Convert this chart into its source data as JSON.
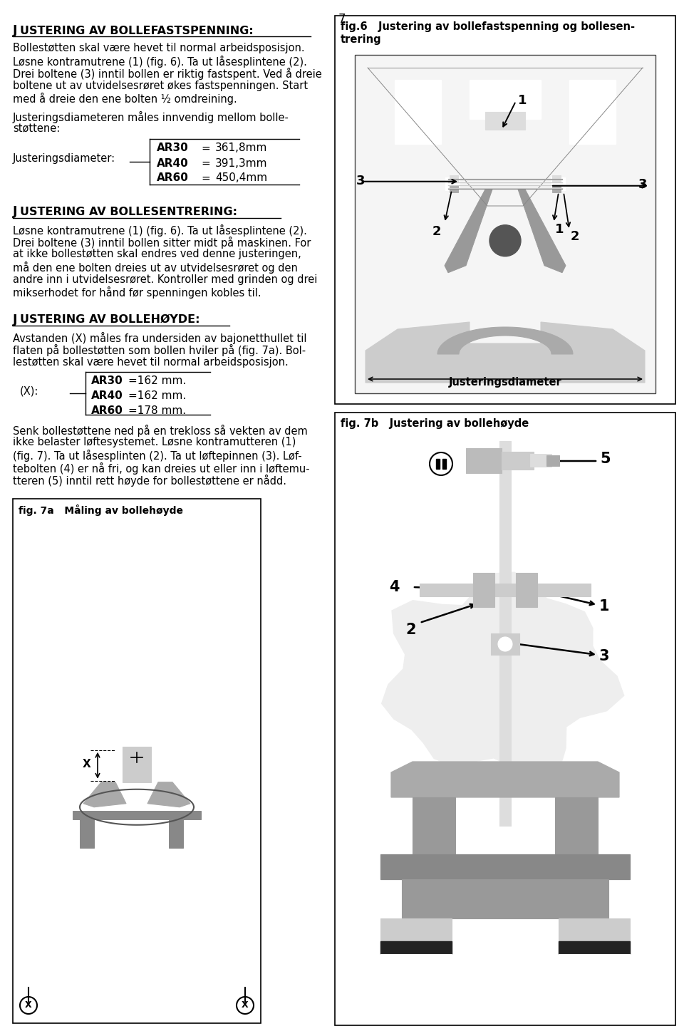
{
  "page_number": "7",
  "bg_color": "#ffffff",
  "section1_heading_J": "J",
  "section1_heading_rest": "USTERING AV BOLLEFASTSPENNING:",
  "section1_lines": [
    "Bollestøtten skal være hevet til normal arbeidsposisjon.",
    "Løsne kontramutrene (1) (fig. 6). Ta ut låsesplintene (2).",
    "Drei boltene (3) inntil bollen er riktig fastspent. Ved å dreie",
    "boltene ut av utvidelsesrøret økes fastspenningen. Start",
    "med å dreie den ene bolten ½ omdreining."
  ],
  "section1_para2_lines": [
    "Justeringsdiameteren måles innvendig mellom bolle-",
    "støttene:"
  ],
  "section1_label": "Justeringsdiameter:",
  "section1_rows": [
    [
      "AR30",
      "=",
      "361,8mm"
    ],
    [
      "AR40",
      "=",
      "391,3mm"
    ],
    [
      "AR60",
      "=",
      "450,4mm"
    ]
  ],
  "section2_heading_J": "J",
  "section2_heading_rest": "USTERING AV BOLLESENTRERING:",
  "section2_lines": [
    "Løsne kontramutrene (1) (fig. 6). Ta ut låsesplintene (2).",
    "Drei boltene (3) inntil bollen sitter midt på maskinen. For",
    "at ikke bollestøtten skal endres ved denne justeringen,",
    "må den ene bolten dreies ut av utvidelsesrøret og den",
    "andre inn i utvidelsesrøret. Kontroller med grinden og drei",
    "mikserhodet for hånd før spenningen kobles til."
  ],
  "section3_heading_J": "J",
  "section3_heading_rest": "USTERING AV BOLLEHØYDE:",
  "section3_lines": [
    "Avstanden (X) måles fra undersiden av bajonetthullet til",
    "flaten på bollestøtten som bollen hviler på (fig. 7a). Bol-",
    "lestøtten skal være hevet til normal arbeidsposisjon."
  ],
  "section3_label": "(X):",
  "section3_rows": [
    [
      "AR30",
      "=162 mm."
    ],
    [
      "AR40",
      "=162 mm."
    ],
    [
      "AR60",
      "=178 mm."
    ]
  ],
  "section3_para2_lines": [
    "Senk bollestøttene ned på en trekloss så vekten av dem",
    "ikke belaster løftesystemet. Løsne kontramutteren (1)",
    "(fig. 7). Ta ut låsesplinten (2). Ta ut løftepinnen (3). Løf-",
    "tebolten (4) er nå fri, og kan dreies ut eller inn i løftemu-",
    "tteren (5) inntil rett høyde for bollestøttene er nådd."
  ],
  "fig6_caption1": "fig.6   Justering av bollefastspenning og bollesen-",
  "fig6_caption2": "trering",
  "fig7a_caption": "fig. 7a   Måling av bollehøyde",
  "fig7b_caption": "fig. 7b   Justering av bollehøyde"
}
